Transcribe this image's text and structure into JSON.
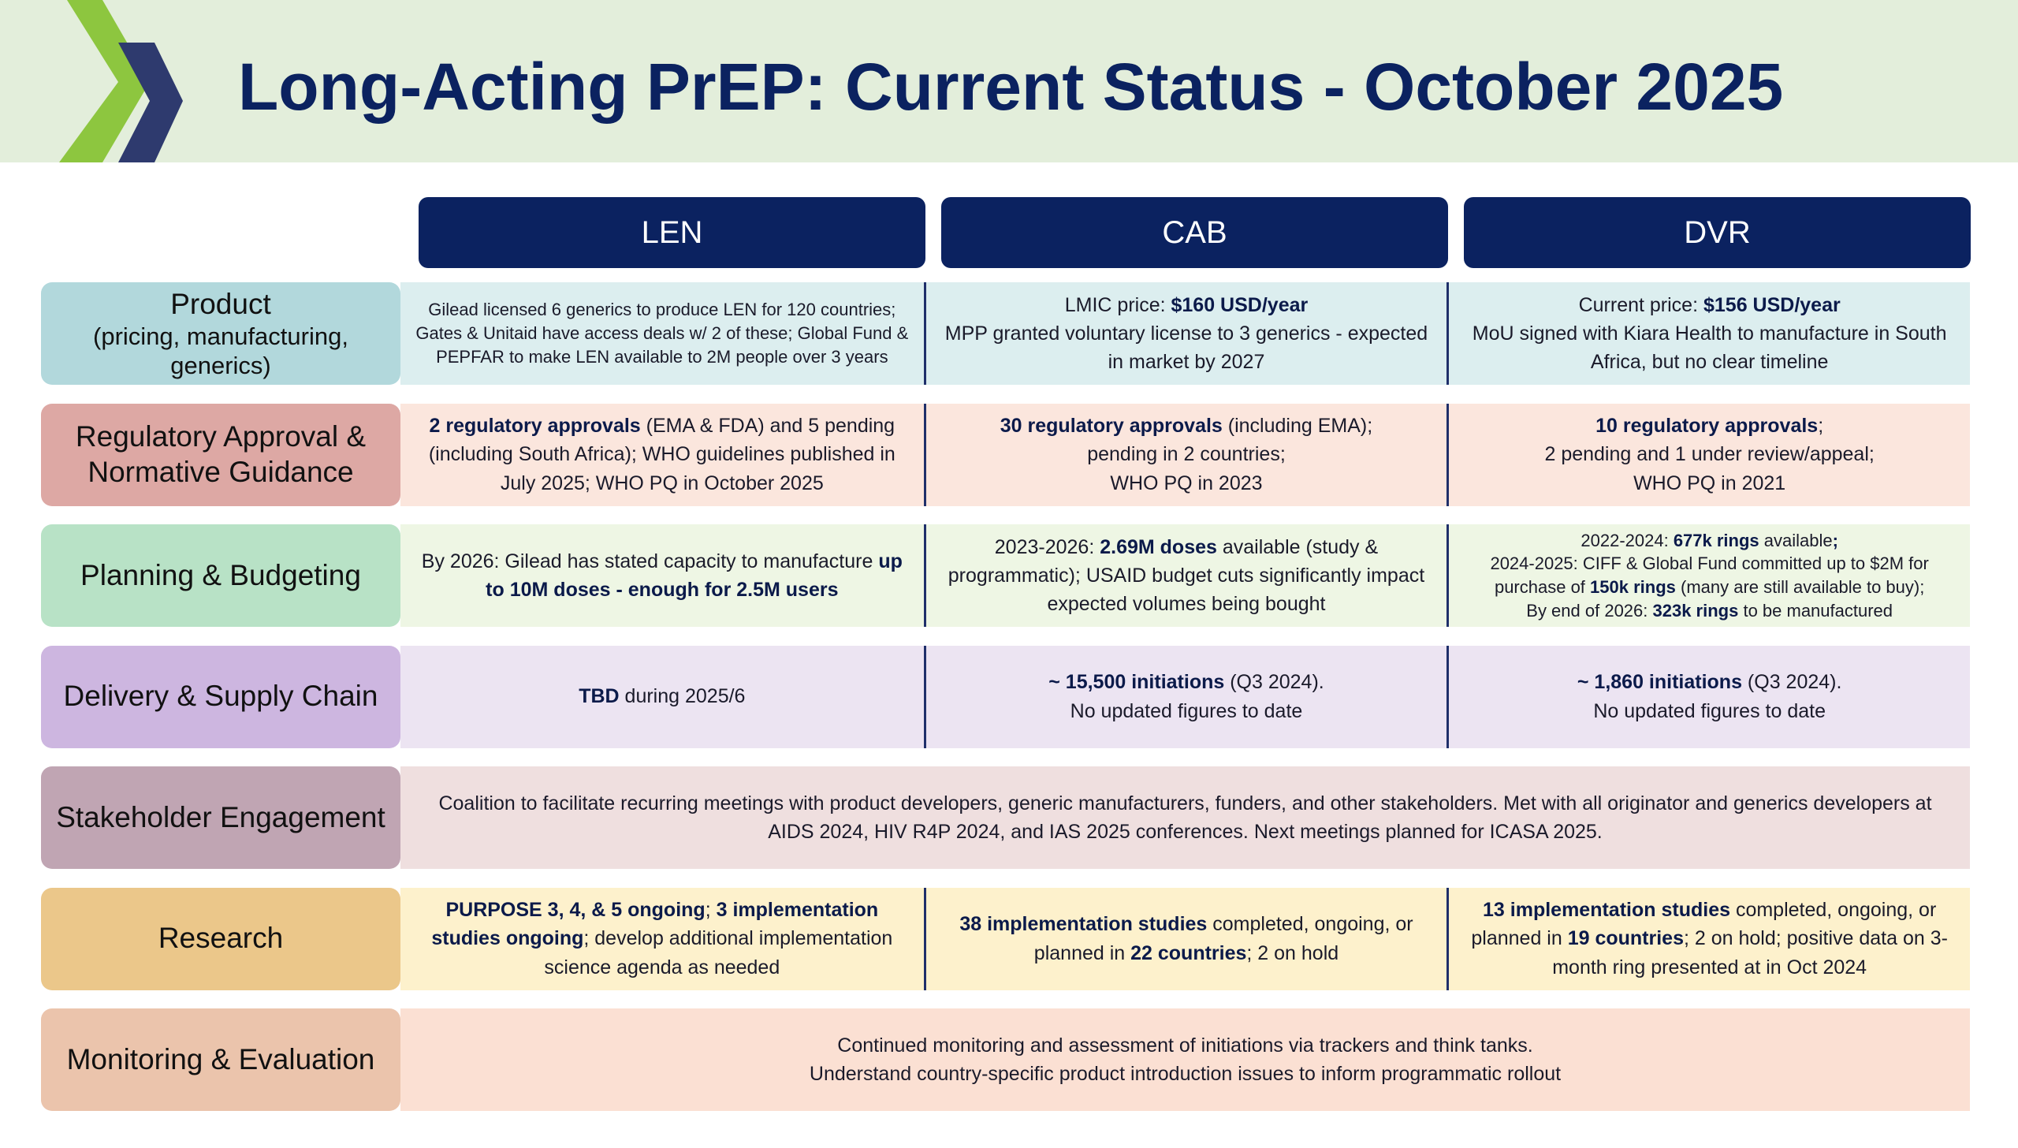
{
  "header": {
    "title": "Long-Acting PrEP: Current Status - October 2025"
  },
  "table": {
    "columns": [
      "LEN",
      "CAB",
      "DVR"
    ],
    "rows": [
      {
        "label": "Product",
        "sublabel": "(pricing, manufacturing, generics)",
        "label_color": "#b2d8dc",
        "cell_color": "#dceeef",
        "cells": [
          [
            [
              "Gilead licensed 6 generics to produce LEN for 120 countries; Gates & Unitaid have access deals w/ 2 of these; Global Fund & PEPFAR to make LEN available to 2M people over 3 years"
            ]
          ],
          [
            [
              "LMIC price: ",
              {
                "text": "$160 USD/year",
                "bold": true
              }
            ],
            [
              "MPP granted voluntary license to 3 generics - expected in market by 2027"
            ]
          ],
          [
            [
              "Current price: ",
              {
                "text": "$156 USD/year",
                "bold": true
              }
            ],
            [
              "MoU signed with Kiara Health to manufacture in South Africa, but no clear timeline"
            ]
          ]
        ]
      },
      {
        "label": "Regulatory Approval & Normative Guidance",
        "label_color": "#dda8a4",
        "cell_color": "#fbe6dd",
        "cells": [
          [
            [
              {
                "text": "2 regulatory approvals",
                "bold": true
              },
              " (EMA & FDA) and 5 pending (including South Africa); WHO guidelines published in July 2025; WHO PQ in October 2025"
            ]
          ],
          [
            [
              {
                "text": "30 regulatory approvals",
                "bold": true
              },
              " (including EMA);"
            ],
            [
              "pending in 2 countries;"
            ],
            [
              "WHO PQ in 2023"
            ]
          ],
          [
            [
              {
                "text": "10 regulatory approvals",
                "bold": true
              },
              ";"
            ],
            [
              "2 pending and 1 under review/appeal;"
            ],
            [
              "WHO PQ in 2021"
            ]
          ]
        ]
      },
      {
        "label": "Planning & Budgeting",
        "label_color": "#b8e2c6",
        "cell_color": "#eef6e4",
        "cells": [
          [
            [
              "By 2026: Gilead has stated capacity to manufacture ",
              {
                "text": "up to 10M doses - enough for 2.5M users",
                "bold": true
              }
            ]
          ],
          [
            [
              "2023-2026: ",
              {
                "text": "2.69M doses",
                "bold": true
              },
              " available (study & programmatic); USAID budget cuts significantly impact expected volumes being bought"
            ]
          ],
          [
            [
              "2022-2024: ",
              {
                "text": "677k rings",
                "bold": true
              },
              " available",
              {
                "text": ";",
                "bold": true
              }
            ],
            [
              "2024-2025: CIFF & Global Fund committed up to $2M for purchase of ",
              {
                "text": "150k rings",
                "bold": true
              },
              " (many are still available to buy);"
            ],
            [
              "By end of 2026: ",
              {
                "text": "323k rings",
                "bold": true
              },
              " to be manufactured"
            ]
          ]
        ]
      },
      {
        "label": "Delivery & Supply Chain",
        "label_color": "#cdb6e0",
        "cell_color": "#ece4f2",
        "cells": [
          [
            [
              {
                "text": "TBD",
                "bold": true
              },
              " during 2025/6"
            ]
          ],
          [
            [
              {
                "text": "~ 15,500 initiations",
                "bold": true
              },
              " (Q3 2024)."
            ],
            [
              "No updated figures to date"
            ]
          ],
          [
            [
              {
                "text": "~ 1,860 initiations",
                "bold": true
              },
              " (Q3 2024)."
            ],
            [
              "No updated figures to date"
            ]
          ]
        ]
      },
      {
        "label": "Stakeholder Engagement",
        "label_color": "#c0a5b3",
        "cell_color": "#efdfdf",
        "cells": [
          [
            [
              "Coalition to facilitate recurring meetings with product developers, generic manufacturers, funders, and other stakeholders. Met with all originator and generics developers at AIDS 2024, HIV R4P 2024, and IAS 2025 conferences. Next meetings planned for ICASA 2025."
            ]
          ]
        ]
      },
      {
        "label": "Research",
        "label_color": "#ebc78a",
        "cell_color": "#fdf1cc",
        "cells": [
          [
            [
              {
                "text": "PURPOSE 3, 4, & 5 ongoing",
                "bold": true
              },
              "; ",
              {
                "text": "3 implementation studies ongoing",
                "bold": true
              },
              "; develop additional implementation science agenda as needed"
            ]
          ],
          [
            [
              {
                "text": "38 implementation studies",
                "bold": true
              },
              " completed, ongoing, or planned in ",
              {
                "text": "22 countries",
                "bold": true
              },
              "; 2 on hold"
            ]
          ],
          [
            [
              {
                "text": "13 implementation studies",
                "bold": true
              },
              " completed, ongoing, or planned in ",
              {
                "text": "19 countries",
                "bold": true
              },
              "; 2 on hold; positive data on 3-month ring presented at in Oct 2024"
            ]
          ]
        ]
      },
      {
        "label": "Monitoring & Evaluation",
        "label_color": "#ebc4ac",
        "cell_color": "#fbe0d3",
        "cells": [
          [
            [
              "Continued monitoring and assessment of initiations via trackers and think tanks."
            ],
            [
              "Understand country-specific product introduction issues to inform programmatic rollout"
            ]
          ]
        ]
      }
    ]
  }
}
